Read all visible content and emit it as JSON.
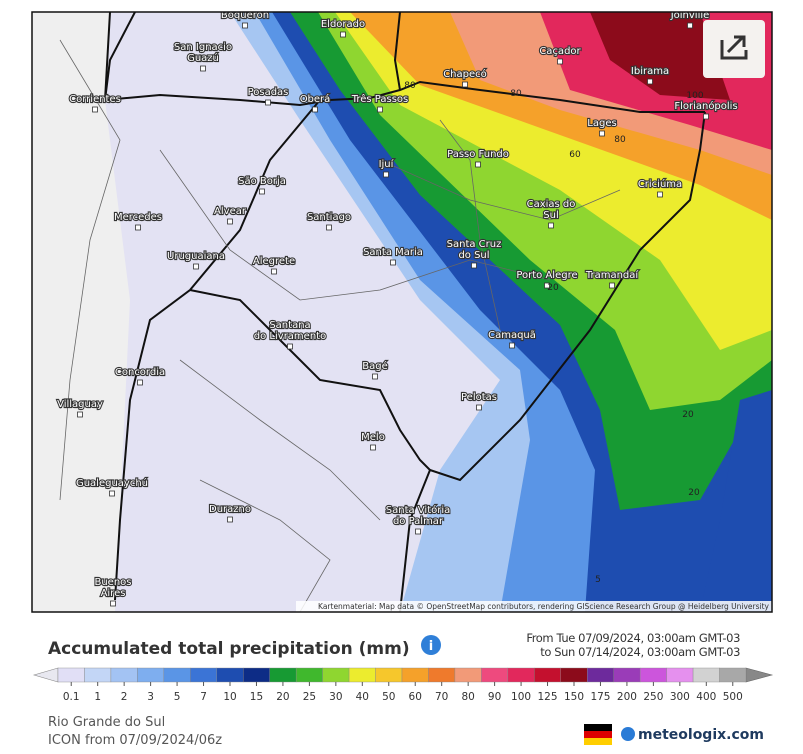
{
  "map": {
    "cities": [
      [
        "Boqueron"
      ],
      [
        "Eldorado"
      ],
      [
        "Joinville"
      ],
      [
        "San Ignacio",
        "Guazú"
      ],
      [
        "Chapecó"
      ],
      [
        "Caçador"
      ],
      [
        "Ibirama"
      ],
      [
        "Florianópolis"
      ],
      [
        "Posadas"
      ],
      [
        "Oberá"
      ],
      [
        "Três Passos"
      ],
      [
        "Corrientes"
      ],
      [
        "Lages"
      ],
      [
        "Passo Fundo"
      ],
      [
        "Ijuí"
      ],
      [
        "Criciúma"
      ],
      [
        "São Borja"
      ],
      [
        "Caxias do",
        "Sul"
      ],
      [
        "Mercedes"
      ],
      [
        "Alvear"
      ],
      [
        "Santiago"
      ],
      [
        "Santa Cruz",
        "do Sul"
      ],
      [
        "Santa Maria"
      ],
      [
        "Uruguaiana"
      ],
      [
        "Alegrete"
      ],
      [
        "Porto Alegre"
      ],
      [
        "Tramandaí"
      ],
      [
        "Santana",
        "do Livramento"
      ],
      [
        "Camaquã"
      ],
      [
        "Concordia"
      ],
      [
        "Bagé"
      ],
      [
        "Pelotas"
      ],
      [
        "Villaguay"
      ],
      [
        "Melo"
      ],
      [
        "Gualeguaychú"
      ],
      [
        "Durazno"
      ],
      [
        "Santa Vitória",
        "do Palmar"
      ],
      [
        "Buenos",
        "Aires"
      ]
    ],
    "contour_labels": [
      "80",
      "80",
      "60",
      "80",
      "100",
      "20",
      "20",
      "20",
      "5"
    ],
    "attribution": "Kartenmaterial: Map data © OpenStreetMap contributors, rendering GIScience Research Group @ Heidelberg University"
  },
  "header": {
    "title": "Accumulated total precipitation (mm)",
    "from": "From Tue 07/09/2024, 03:00am GMT-03",
    "to": "to Sun 07/14/2024, 03:00am GMT-03"
  },
  "legend": {
    "values": [
      0.1,
      1,
      2,
      3,
      5,
      7,
      10,
      15,
      20,
      25,
      30,
      40,
      50,
      60,
      70,
      80,
      90,
      100,
      125,
      150,
      175,
      200,
      250,
      300,
      400,
      500
    ],
    "colors": [
      "#e1dff6",
      "#c3d6f6",
      "#a3c3f3",
      "#7eaeef",
      "#5a95e6",
      "#3b74d6",
      "#1e4db0",
      "#0d2c86",
      "#179a33",
      "#40b82d",
      "#8fd630",
      "#ecec2e",
      "#f6c72c",
      "#f5a12a",
      "#ef7a2c",
      "#f29a78",
      "#ee4a7e",
      "#e2285c",
      "#c4102e",
      "#8c0b1b",
      "#6d2a9c",
      "#9a3cb8",
      "#cc55dc",
      "#e590ee",
      "#d2d2d2",
      "#a8a8a8"
    ]
  },
  "footer": {
    "region": "Rio Grande do Sul",
    "model": "ICON from 07/09/2024/06z",
    "brand": "meteologix.com"
  }
}
